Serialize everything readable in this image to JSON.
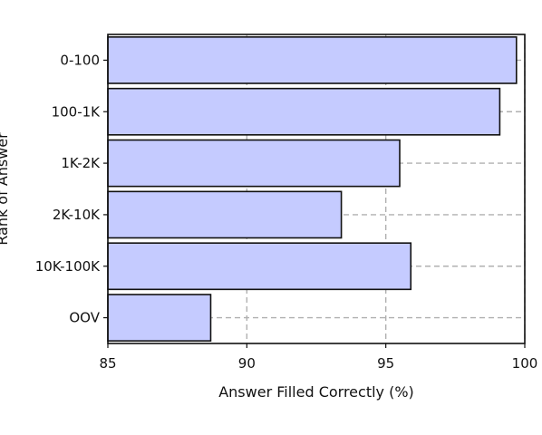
{
  "chart_data": {
    "type": "bar",
    "orientation": "horizontal",
    "categories": [
      "0-100",
      "100-1K",
      "1K-2K",
      "2K-10K",
      "10K-100K",
      "OOV"
    ],
    "values": [
      99.7,
      99.1,
      95.5,
      93.4,
      95.9,
      88.7
    ],
    "xlabel": "Answer Filled Correctly (%)",
    "ylabel": "Rank of Answer",
    "xlim": [
      85,
      100
    ],
    "xticks": [
      "85",
      "90",
      "95",
      "100"
    ],
    "grid": true,
    "bar_color": "#c5cbff",
    "bar_edge_color": "#111111",
    "grid_color": "#b0b0b0"
  }
}
